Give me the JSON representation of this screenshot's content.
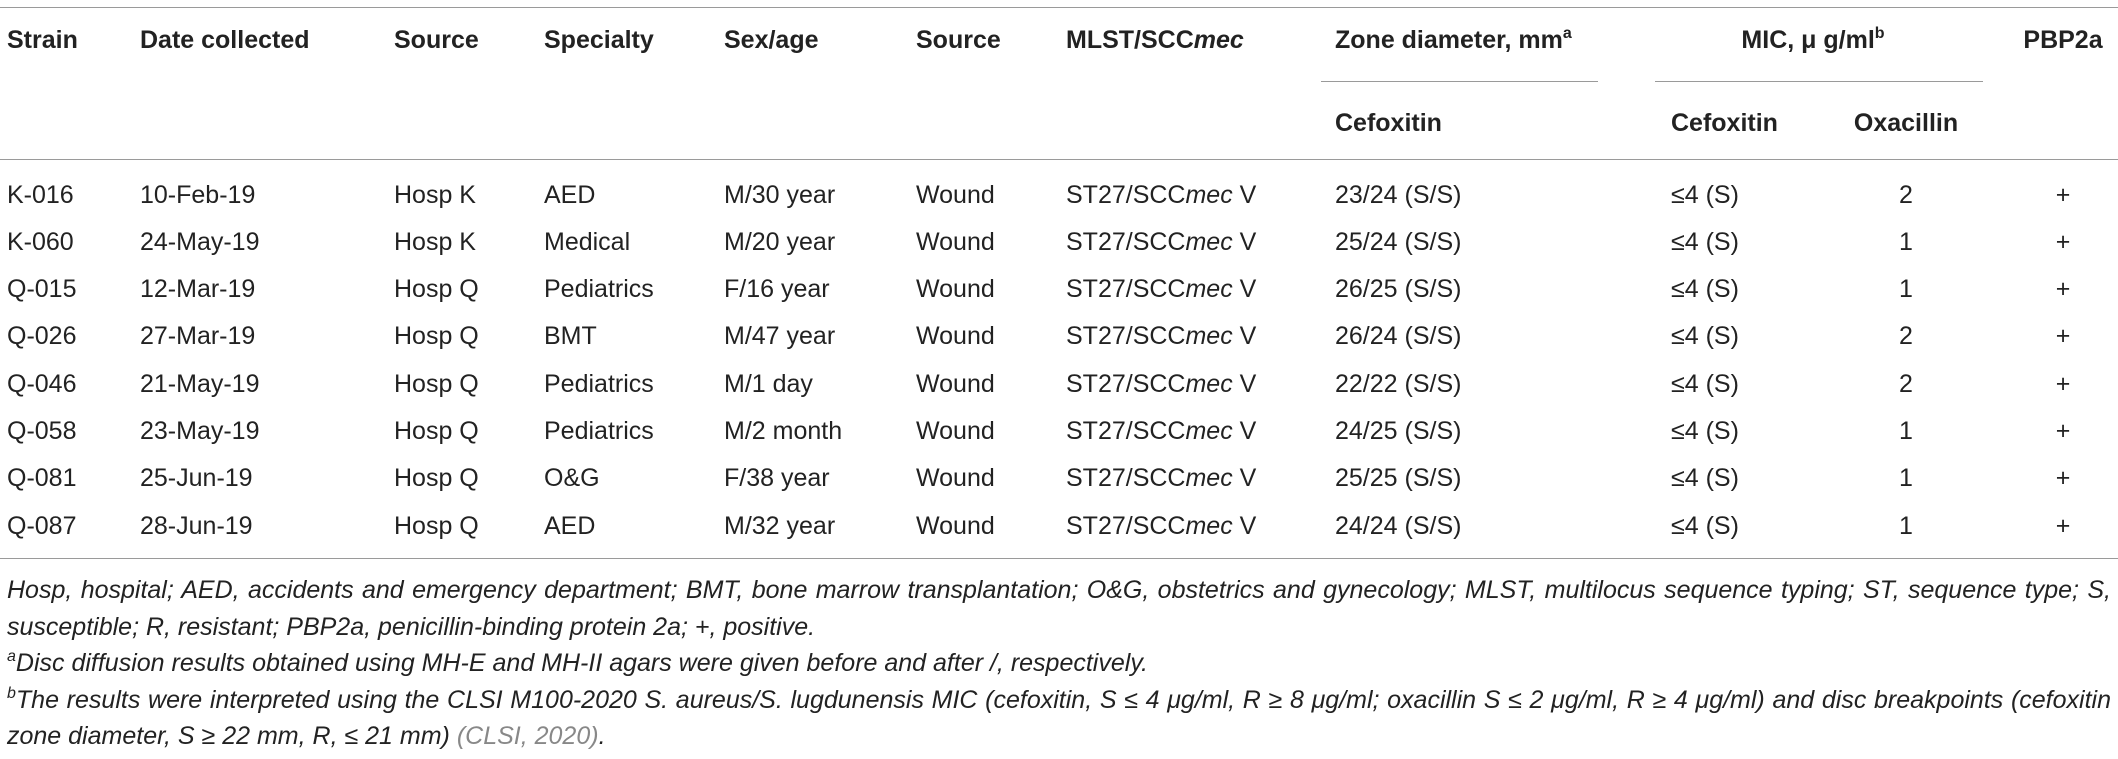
{
  "table": {
    "columns": [
      "Strain",
      "Date collected",
      "Source",
      "Specialty",
      "Sex/age",
      "Source"
    ],
    "mlst_header": {
      "text": "MLST/SCC",
      "italic": "mec"
    },
    "zone_header": {
      "text": "Zone diameter, mm",
      "sup": "a",
      "sub": [
        "Cefoxitin"
      ]
    },
    "mic_header": {
      "text": "MIC, μ g/ml",
      "sup": "b",
      "sub": [
        "Cefoxitin",
        "Oxacillin"
      ]
    },
    "pbp_header": "PBP2a",
    "rows": [
      [
        "K-016",
        "10-Feb-19",
        "Hosp K",
        "AED",
        "M/30 year",
        "Wound",
        {
          "prefix": "ST27/SCC",
          "italic": "mec",
          "suffix": " V"
        },
        "23/24 (S/S)",
        "≤4 (S)",
        2,
        "+"
      ],
      [
        "K-060",
        "24-May-19",
        "Hosp K",
        "Medical",
        "M/20 year",
        "Wound",
        {
          "prefix": "ST27/SCC",
          "italic": "mec",
          "suffix": " V"
        },
        "25/24 (S/S)",
        "≤4 (S)",
        1,
        "+"
      ],
      [
        "Q-015",
        "12-Mar-19",
        "Hosp Q",
        "Pediatrics",
        "F/16 year",
        "Wound",
        {
          "prefix": "ST27/SCC",
          "italic": "mec",
          "suffix": " V"
        },
        "26/25 (S/S)",
        "≤4 (S)",
        1,
        "+"
      ],
      [
        "Q-026",
        "27-Mar-19",
        "Hosp Q",
        "BMT",
        "M/47 year",
        "Wound",
        {
          "prefix": "ST27/SCC",
          "italic": "mec",
          "suffix": " V"
        },
        "26/24 (S/S)",
        "≤4 (S)",
        2,
        "+"
      ],
      [
        "Q-046",
        "21-May-19",
        "Hosp Q",
        "Pediatrics",
        "M/1 day",
        "Wound",
        {
          "prefix": "ST27/SCC",
          "italic": "mec",
          "suffix": " V"
        },
        "22/22 (S/S)",
        "≤4 (S)",
        2,
        "+"
      ],
      [
        "Q-058",
        "23-May-19",
        "Hosp Q",
        "Pediatrics",
        "M/2 month",
        "Wound",
        {
          "prefix": "ST27/SCC",
          "italic": "mec",
          "suffix": " V"
        },
        "24/25 (S/S)",
        "≤4 (S)",
        1,
        "+"
      ],
      [
        "Q-081",
        "25-Jun-19",
        "Hosp Q",
        "O&G",
        "F/38 year",
        "Wound",
        {
          "prefix": "ST27/SCC",
          "italic": "mec",
          "suffix": " V"
        },
        "25/25 (S/S)",
        "≤4 (S)",
        1,
        "+"
      ],
      [
        "Q-087",
        "28-Jun-19",
        "Hosp Q",
        "AED",
        "M/32 year",
        "Wound",
        {
          "prefix": "ST27/SCC",
          "italic": "mec",
          "suffix": " V"
        },
        "24/24 (S/S)",
        "≤4 (S)",
        1,
        "+"
      ]
    ]
  },
  "footnotes": [
    {
      "text": "Hosp, hospital; AED, accidents and emergency department; BMT, bone marrow transplantation; O&G, obstetrics and gynecology; MLST, multilocus sequence typing; ST, sequence type; S, susceptible; R, resistant; PBP2a, penicillin-binding protein 2a; +, positive."
    },
    {
      "sup": "a",
      "text": "Disc diffusion results obtained using MH-E and MH-II agars were given before and after /, respectively."
    },
    {
      "sup": "b",
      "text": "The results were interpreted using the CLSI M100-2020 S. aureus/S. lugdunensis MIC (cefoxitin, S ≤ 4 μg/ml, R ≥ 8 μg/ml; oxacillin S ≤ 2 μg/ml, R ≥ 4 μg/ml) and disc breakpoints (cefoxitin zone diameter, S ≥ 22 mm, R, ≤ 21 mm) ",
      "cite": "(CLSI, 2020)",
      "end": "."
    }
  ]
}
